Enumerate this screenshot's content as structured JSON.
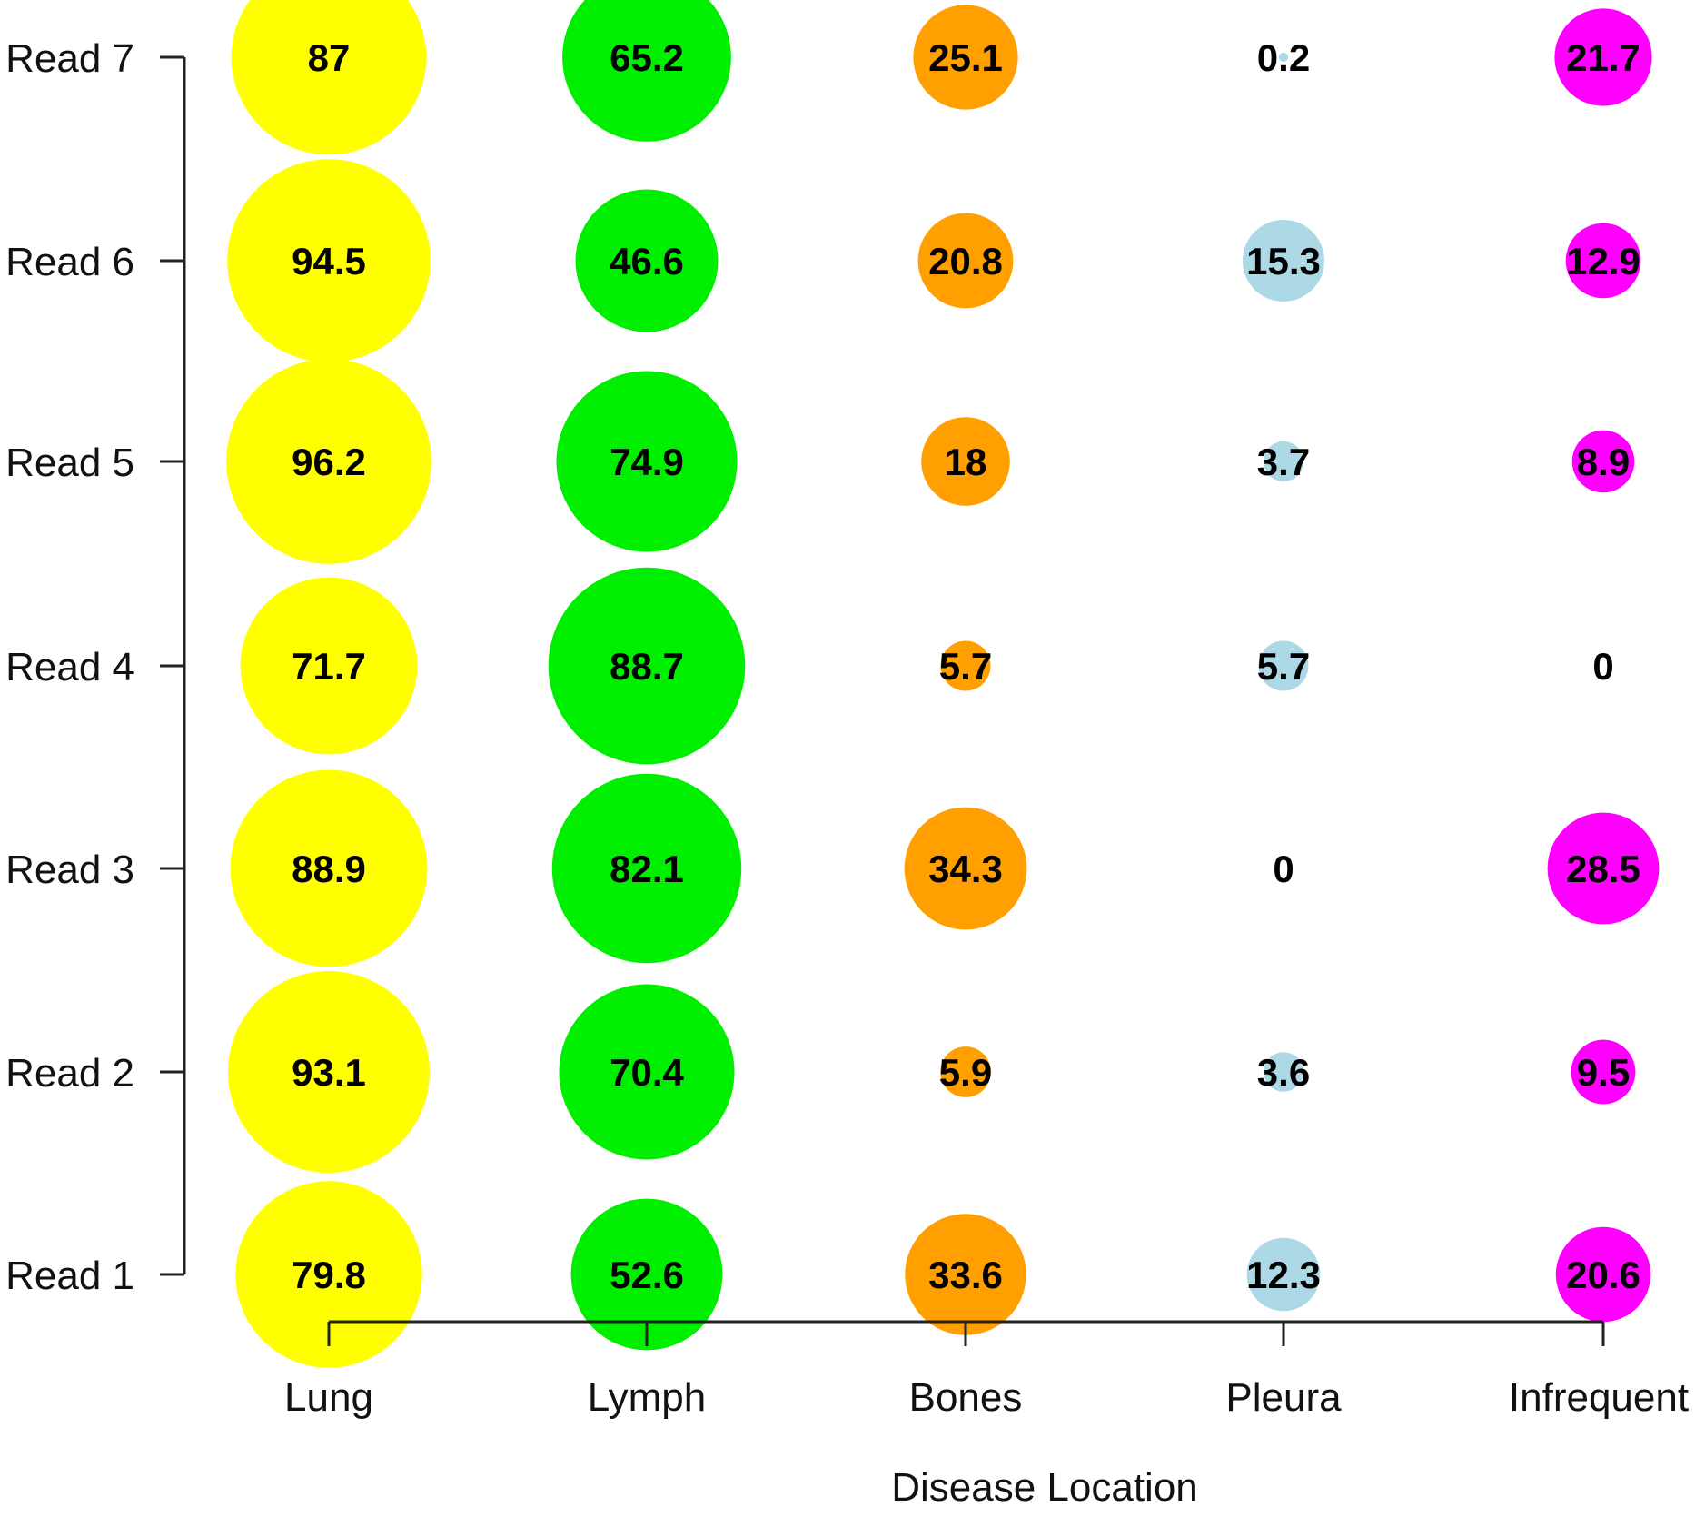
{
  "chart_data": {
    "type": "bubble",
    "title": "",
    "xlabel": "Disease Location",
    "ylabel": "",
    "categories": [
      "Lung",
      "Lymph",
      "Bones",
      "Pleura",
      "Infrequent"
    ],
    "rows": [
      "Read 1",
      "Read 2",
      "Read 3",
      "Read 4",
      "Read 5",
      "Read 6",
      "Read 7"
    ],
    "colors": [
      "#ffff00",
      "#00ee00",
      "#ff9f00",
      "#add8e6",
      "#ff00ff"
    ],
    "values": [
      [
        79.8,
        52.6,
        33.6,
        12.3,
        20.6
      ],
      [
        93.1,
        70.4,
        5.9,
        3.6,
        9.5
      ],
      [
        88.9,
        82.1,
        34.3,
        0,
        28.5
      ],
      [
        71.7,
        88.7,
        5.7,
        5.7,
        0
      ],
      [
        96.2,
        74.9,
        18,
        3.7,
        8.9
      ],
      [
        94.5,
        46.6,
        20.8,
        15.3,
        12.9
      ],
      [
        87,
        65.2,
        25.1,
        0.2,
        21.7
      ]
    ],
    "value_labels": [
      [
        "79.8",
        "52.6",
        "33.6",
        "12.3",
        "20.6"
      ],
      [
        "93.1",
        "70.4",
        "5.9",
        "3.6",
        "9.5"
      ],
      [
        "88.9",
        "82.1",
        "34.3",
        "0",
        "28.5"
      ],
      [
        "71.7",
        "88.7",
        "5.7",
        "5.7",
        "0"
      ],
      [
        "96.2",
        "74.9",
        "18",
        "3.7",
        "8.9"
      ],
      [
        "94.5",
        "46.6",
        "20.8",
        "15.3",
        "12.9"
      ],
      [
        "87",
        "65.2",
        "25.1",
        "0.2",
        "21.7"
      ]
    ],
    "grid": false,
    "legend": "none"
  }
}
